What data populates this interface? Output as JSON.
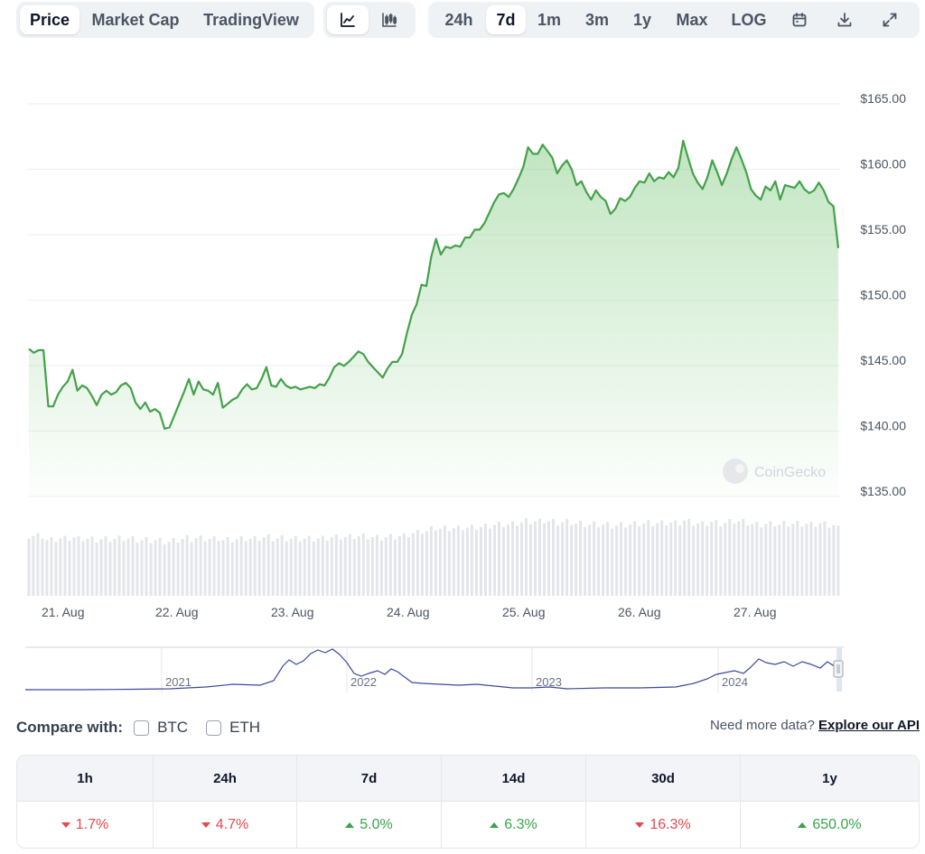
{
  "toolbar": {
    "view_tabs": [
      {
        "label": "Price",
        "active": true
      },
      {
        "label": "Market Cap",
        "active": false
      },
      {
        "label": "TradingView",
        "active": false
      }
    ],
    "chart_types": [
      {
        "icon": "line-chart-icon",
        "active": true
      },
      {
        "icon": "candlestick-chart-icon",
        "active": false
      }
    ],
    "ranges": [
      {
        "label": "24h",
        "active": false
      },
      {
        "label": "7d",
        "active": true
      },
      {
        "label": "1m",
        "active": false
      },
      {
        "label": "3m",
        "active": false
      },
      {
        "label": "1y",
        "active": false
      },
      {
        "label": "Max",
        "active": false
      },
      {
        "label": "LOG",
        "active": false
      }
    ],
    "tool_icons": [
      "calendar-icon",
      "download-icon",
      "fullscreen-icon"
    ]
  },
  "chart_data": {
    "type": "area",
    "title": "",
    "xlabel": "",
    "ylabel": "",
    "x_ticks": [
      "21. Aug",
      "22. Aug",
      "23. Aug",
      "24. Aug",
      "25. Aug",
      "26. Aug",
      "27. Aug"
    ],
    "y_ticks": [
      "$165.00",
      "$160.00",
      "$155.00",
      "$150.00",
      "$145.00",
      "$140.00",
      "$135.00"
    ],
    "ylim": [
      135,
      165
    ],
    "series": [
      {
        "values": [
          145.8,
          145.5,
          145.7,
          145.7,
          141.4,
          141.4,
          142.3,
          142.9,
          143.3,
          144.2,
          142.6,
          143.0,
          142.8,
          142.2,
          141.5,
          142.3,
          142.6,
          142.3,
          142.5,
          143.0,
          143.2,
          142.8,
          141.7,
          141.2,
          141.7,
          141.0,
          141.2,
          140.9,
          139.7,
          139.8,
          140.7,
          141.6,
          142.5,
          143.5,
          142.3,
          143.3,
          142.7,
          142.6,
          142.3,
          143.2,
          141.3,
          141.6,
          141.9,
          142.1,
          142.7,
          143.1,
          142.7,
          142.8,
          143.5,
          144.4,
          143.0,
          142.9,
          143.5,
          143.0,
          142.8,
          142.9,
          142.7,
          142.8,
          142.9,
          142.8,
          143.1,
          143.0,
          143.6,
          144.4,
          144.7,
          144.5,
          144.8,
          145.2,
          145.6,
          145.4,
          144.8,
          144.4,
          144.0,
          143.6,
          144.3,
          144.8,
          144.8,
          145.4,
          147.0,
          148.4,
          149.2,
          150.7,
          150.6,
          152.8,
          154.2,
          153.0,
          153.6,
          153.5,
          153.7,
          153.6,
          154.3,
          154.3,
          154.9,
          154.9,
          155.4,
          156.2,
          157.0,
          157.6,
          157.7,
          157.4,
          158.0,
          158.8,
          159.7,
          161.2,
          160.7,
          160.7,
          161.4,
          160.9,
          160.4,
          159.2,
          159.8,
          160.2,
          159.5,
          158.3,
          158.6,
          157.8,
          157.2,
          157.9,
          157.4,
          157.1,
          156.1,
          156.5,
          157.3,
          157.1,
          157.4,
          158.1,
          158.6,
          158.5,
          159.2,
          158.6,
          158.9,
          158.8,
          159.3,
          158.9,
          159.6,
          161.7,
          160.4,
          159.2,
          158.5,
          158.0,
          158.9,
          160.2,
          159.3,
          158.3,
          159.2,
          160.3,
          161.2,
          160.3,
          159.3,
          158.0,
          157.5,
          157.2,
          158.2,
          157.9,
          158.6,
          157.2,
          158.3,
          158.2,
          158.1,
          158.6,
          158.0,
          157.7,
          157.9,
          158.5,
          157.9,
          157.0,
          156.7,
          153.5
        ]
      }
    ],
    "volume_count": 180,
    "navigator_years": [
      "2021",
      "2022",
      "2023",
      "2024"
    ],
    "watermark": "CoinGecko",
    "grid": true,
    "line_color": "#44a14a"
  },
  "compare": {
    "label": "Compare with:",
    "options": [
      "BTC",
      "ETH"
    ],
    "api_prompt": "Need more data?",
    "api_link": "Explore our API"
  },
  "performance": {
    "columns": [
      {
        "period": "1h",
        "change": "1.7%",
        "direction": "down"
      },
      {
        "period": "24h",
        "change": "4.7%",
        "direction": "down"
      },
      {
        "period": "7d",
        "change": "5.0%",
        "direction": "up"
      },
      {
        "period": "14d",
        "change": "6.3%",
        "direction": "up"
      },
      {
        "period": "30d",
        "change": "16.3%",
        "direction": "down"
      },
      {
        "period": "1y",
        "change": "650.0%",
        "direction": "up"
      }
    ]
  }
}
